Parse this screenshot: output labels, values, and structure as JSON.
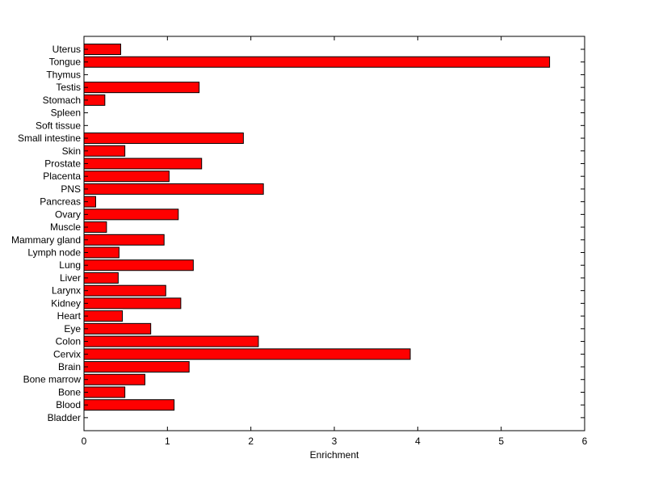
{
  "chart_data": {
    "type": "bar",
    "orientation": "horizontal",
    "categories": [
      "Uterus",
      "Tongue",
      "Thymus",
      "Testis",
      "Stomach",
      "Spleen",
      "Soft tissue",
      "Small intestine",
      "Skin",
      "Prostate",
      "Placenta",
      "PNS",
      "Pancreas",
      "Ovary",
      "Muscle",
      "Mammary gland",
      "Lymph node",
      "Lung",
      "Liver",
      "Larynx",
      "Kidney",
      "Heart",
      "Eye",
      "Colon",
      "Cervix",
      "Brain",
      "Bone marrow",
      "Bone",
      "Blood",
      "Bladder"
    ],
    "values": [
      0.44,
      5.58,
      0.0,
      1.38,
      0.25,
      0.0,
      0.0,
      1.91,
      0.49,
      1.41,
      1.02,
      2.15,
      0.14,
      1.13,
      0.27,
      0.96,
      0.42,
      1.31,
      0.41,
      0.98,
      1.16,
      0.46,
      0.8,
      2.09,
      3.91,
      1.26,
      0.73,
      0.49,
      1.08,
      0.0
    ],
    "title": "",
    "xlabel": "Enrichment",
    "ylabel": "",
    "xlim": [
      0,
      6
    ],
    "xticks": [
      "0",
      "1",
      "2",
      "3",
      "4",
      "5",
      "6"
    ],
    "grid": false,
    "bar_color": "#ff0000",
    "edge_color": "#000000"
  }
}
